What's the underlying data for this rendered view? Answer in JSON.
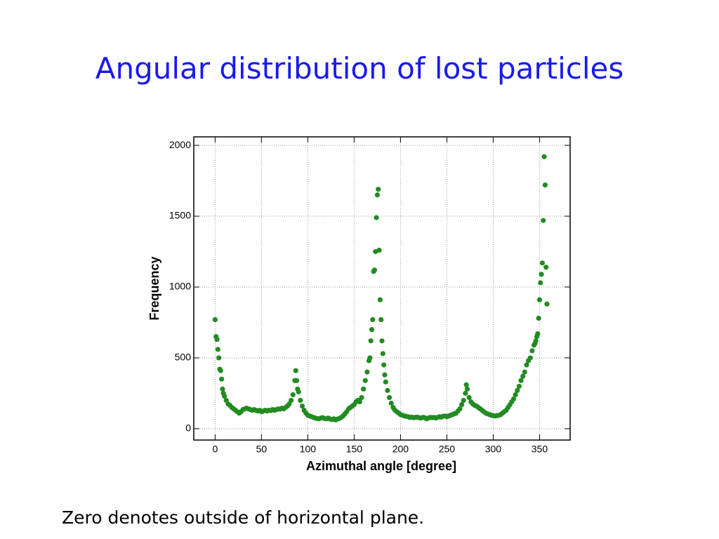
{
  "chart_data": {
    "type": "scatter",
    "title": "Angular distribution of lost particles",
    "caption": "Zero denotes outside of horizontal plane.",
    "xlabel": "Azimuthal angle [degree]",
    "ylabel": "Frequency",
    "color": "#228b22",
    "grid": true,
    "xlim": [
      -23,
      383
    ],
    "ylim": [
      -80,
      2060
    ],
    "xticks": [
      0,
      50,
      100,
      150,
      200,
      250,
      300,
      350
    ],
    "yticks": [
      0,
      500,
      1000,
      1500,
      2000
    ],
    "x": [
      0,
      1,
      2,
      3,
      4,
      5,
      6,
      7,
      8,
      9,
      10,
      12,
      14,
      16,
      18,
      20,
      22,
      24,
      26,
      28,
      30,
      32,
      34,
      36,
      38,
      40,
      42,
      44,
      46,
      48,
      50,
      52,
      54,
      56,
      58,
      60,
      62,
      64,
      66,
      68,
      70,
      72,
      74,
      76,
      78,
      80,
      82,
      84,
      86,
      87,
      88,
      89,
      90,
      92,
      94,
      96,
      98,
      100,
      102,
      104,
      106,
      108,
      110,
      112,
      114,
      116,
      118,
      120,
      122,
      124,
      126,
      128,
      130,
      132,
      134,
      136,
      138,
      140,
      142,
      144,
      146,
      148,
      150,
      152,
      154,
      156,
      158,
      160,
      162,
      164,
      166,
      167,
      168,
      169,
      170,
      171,
      172,
      173,
      174,
      175,
      176,
      177,
      178,
      179,
      180,
      181,
      182,
      183,
      184,
      186,
      188,
      190,
      192,
      194,
      196,
      198,
      200,
      202,
      204,
      206,
      208,
      210,
      212,
      214,
      216,
      218,
      220,
      222,
      224,
      226,
      228,
      230,
      232,
      234,
      236,
      238,
      240,
      242,
      244,
      246,
      248,
      250,
      252,
      254,
      256,
      258,
      260,
      262,
      264,
      266,
      268,
      270,
      271,
      272,
      274,
      276,
      278,
      280,
      282,
      284,
      286,
      288,
      290,
      292,
      294,
      296,
      298,
      300,
      302,
      304,
      306,
      308,
      310,
      312,
      314,
      316,
      318,
      320,
      322,
      324,
      326,
      328,
      330,
      332,
      334,
      336,
      338,
      340,
      342,
      344,
      345,
      346,
      347,
      348,
      349,
      350,
      351,
      352,
      353,
      354,
      355,
      356,
      357,
      358
    ],
    "values": [
      770,
      650,
      630,
      560,
      500,
      420,
      410,
      350,
      280,
      250,
      230,
      200,
      175,
      165,
      150,
      140,
      130,
      120,
      110,
      120,
      135,
      140,
      145,
      140,
      135,
      130,
      135,
      130,
      125,
      130,
      120,
      125,
      130,
      125,
      130,
      128,
      135,
      130,
      135,
      140,
      138,
      145,
      140,
      150,
      160,
      175,
      200,
      240,
      340,
      410,
      340,
      280,
      260,
      200,
      160,
      130,
      110,
      95,
      90,
      85,
      80,
      75,
      72,
      70,
      75,
      78,
      72,
      70,
      75,
      68,
      65,
      70,
      62,
      68,
      72,
      80,
      90,
      105,
      120,
      140,
      150,
      160,
      170,
      190,
      200,
      190,
      220,
      280,
      340,
      400,
      480,
      500,
      620,
      700,
      770,
      1110,
      1120,
      1250,
      1490,
      1650,
      1690,
      1260,
      910,
      770,
      620,
      530,
      450,
      380,
      330,
      270,
      220,
      180,
      150,
      130,
      120,
      110,
      100,
      95,
      90,
      88,
      85,
      80,
      82,
      78,
      80,
      82,
      78,
      75,
      80,
      78,
      70,
      75,
      80,
      78,
      80,
      75,
      80,
      85,
      82,
      88,
      90,
      85,
      90,
      95,
      100,
      105,
      110,
      125,
      140,
      170,
      200,
      250,
      310,
      280,
      220,
      190,
      175,
      165,
      160,
      150,
      140,
      130,
      120,
      110,
      105,
      100,
      95,
      92,
      90,
      92,
      95,
      100,
      110,
      120,
      130,
      150,
      170,
      190,
      210,
      240,
      270,
      300,
      340,
      370,
      400,
      450,
      480,
      500,
      550,
      590,
      600,
      620,
      650,
      670,
      780,
      910,
      1030,
      1090,
      1170,
      1470,
      1920,
      1720,
      1140,
      880
    ]
  }
}
